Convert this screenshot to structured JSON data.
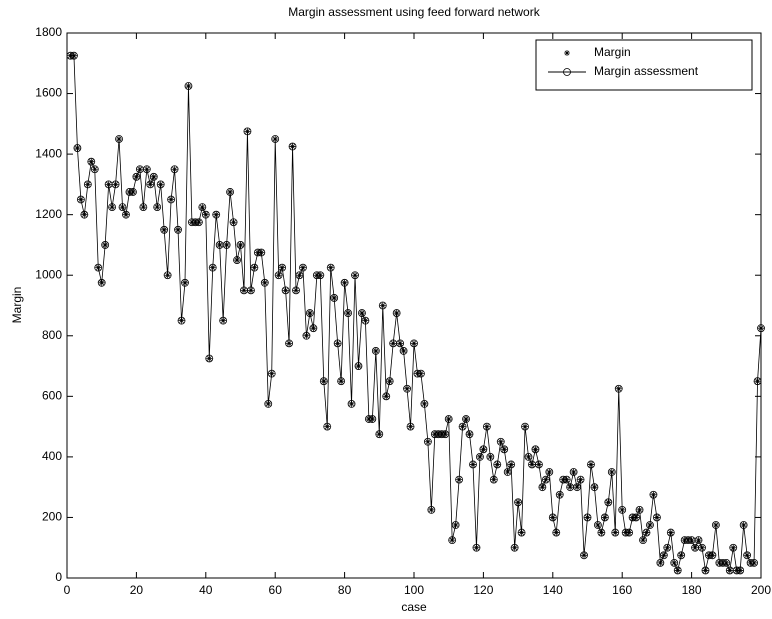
{
  "chart_data": {
    "type": "line",
    "title": "Margin assessment using feed forward network",
    "x_label": "case",
    "y_label": "Margin",
    "xlim": [
      0,
      200
    ],
    "ylim": [
      0,
      1800
    ],
    "xticks": [
      0,
      20,
      40,
      60,
      80,
      100,
      120,
      140,
      160,
      180,
      200
    ],
    "yticks": [
      0,
      200,
      400,
      600,
      800,
      1000,
      1200,
      1400,
      1600,
      1800
    ],
    "grid": false,
    "legend": "upper right",
    "x": [
      1,
      2,
      3,
      4,
      5,
      6,
      7,
      8,
      9,
      10,
      11,
      12,
      13,
      14,
      15,
      16,
      17,
      18,
      19,
      20,
      21,
      22,
      23,
      24,
      25,
      26,
      27,
      28,
      29,
      30,
      31,
      32,
      33,
      34,
      35,
      36,
      37,
      38,
      39,
      40,
      41,
      42,
      43,
      44,
      45,
      46,
      47,
      48,
      49,
      50,
      51,
      52,
      53,
      54,
      55,
      56,
      57,
      58,
      59,
      60,
      61,
      62,
      63,
      64,
      65,
      66,
      67,
      68,
      69,
      70,
      71,
      72,
      73,
      74,
      75,
      76,
      77,
      78,
      79,
      80,
      81,
      82,
      83,
      84,
      85,
      86,
      87,
      88,
      89,
      90,
      91,
      92,
      93,
      94,
      95,
      96,
      97,
      98,
      99,
      100,
      101,
      102,
      103,
      104,
      105,
      106,
      107,
      108,
      109,
      110,
      111,
      112,
      113,
      114,
      115,
      116,
      117,
      118,
      119,
      120,
      121,
      122,
      123,
      124,
      125,
      126,
      127,
      128,
      129,
      130,
      131,
      132,
      133,
      134,
      135,
      136,
      137,
      138,
      139,
      140,
      141,
      142,
      143,
      144,
      145,
      146,
      147,
      148,
      149,
      150,
      151,
      152,
      153,
      154,
      155,
      156,
      157,
      158,
      159,
      160,
      161,
      162,
      163,
      164,
      165,
      166,
      167,
      168,
      169,
      170,
      171,
      172,
      173,
      174,
      175,
      176,
      177,
      178,
      179,
      180,
      181,
      182,
      183,
      184,
      185,
      186,
      187,
      188,
      189,
      190,
      191,
      192,
      193,
      194,
      195,
      196,
      197,
      198,
      199,
      200
    ],
    "series": [
      {
        "name": "Margin",
        "color": "#000000",
        "marker": "asterisk",
        "values": [
          1725,
          1725,
          1420,
          1250,
          1200,
          1300,
          1375,
          1350,
          1025,
          975,
          1100,
          1300,
          1225,
          1300,
          1450,
          1225,
          1200,
          1275,
          1275,
          1325,
          1350,
          1225,
          1350,
          1300,
          1325,
          1225,
          1300,
          1150,
          1000,
          1250,
          1350,
          1150,
          850,
          975,
          1625,
          1175,
          1175,
          1175,
          1225,
          1200,
          725,
          1025,
          1200,
          1100,
          850,
          1100,
          1275,
          1175,
          1050,
          1100,
          950,
          1475,
          950,
          1025,
          1075,
          1075,
          975,
          575,
          675,
          1450,
          1000,
          1025,
          950,
          775,
          1425,
          950,
          1000,
          1025,
          800,
          875,
          825,
          1000,
          1000,
          650,
          500,
          1025,
          925,
          775,
          650,
          975,
          875,
          575,
          1000,
          700,
          875,
          850,
          525,
          525,
          750,
          475,
          900,
          600,
          650,
          775,
          875,
          775,
          750,
          625,
          500,
          775,
          675,
          675,
          575,
          450,
          225,
          475,
          475,
          475,
          475,
          525,
          125,
          175,
          325,
          500,
          525,
          475,
          375,
          100,
          400,
          425,
          500,
          400,
          325,
          375,
          450,
          425,
          350,
          375,
          100,
          250,
          150,
          500,
          400,
          375,
          425,
          375,
          300,
          325,
          350,
          200,
          150,
          275,
          325,
          325,
          300,
          350,
          300,
          325,
          75,
          200,
          375,
          300,
          175,
          150,
          200,
          250,
          350,
          150,
          625,
          225,
          150,
          150,
          200,
          200,
          225,
          125,
          150,
          175,
          275,
          200,
          50,
          75,
          100,
          150,
          50,
          25,
          75,
          125,
          125,
          125,
          100,
          125,
          100,
          25,
          75,
          75,
          175,
          50,
          50,
          50,
          25,
          100,
          25,
          25,
          175,
          75,
          50,
          50,
          650,
          825
        ]
      },
      {
        "name": "Margin assessment",
        "color": "#000000",
        "marker": "circle",
        "values": [
          1725,
          1725,
          1420,
          1250,
          1200,
          1300,
          1375,
          1350,
          1025,
          975,
          1100,
          1300,
          1225,
          1300,
          1450,
          1225,
          1200,
          1275,
          1275,
          1325,
          1350,
          1225,
          1350,
          1300,
          1325,
          1225,
          1300,
          1150,
          1000,
          1250,
          1350,
          1150,
          850,
          975,
          1625,
          1175,
          1175,
          1175,
          1225,
          1200,
          725,
          1025,
          1200,
          1100,
          850,
          1100,
          1275,
          1175,
          1050,
          1100,
          950,
          1475,
          950,
          1025,
          1075,
          1075,
          975,
          575,
          675,
          1450,
          1000,
          1025,
          950,
          775,
          1425,
          950,
          1000,
          1025,
          800,
          875,
          825,
          1000,
          1000,
          650,
          500,
          1025,
          925,
          775,
          650,
          975,
          875,
          575,
          1000,
          700,
          875,
          850,
          525,
          525,
          750,
          475,
          900,
          600,
          650,
          775,
          875,
          775,
          750,
          625,
          500,
          775,
          675,
          675,
          575,
          450,
          225,
          475,
          475,
          475,
          475,
          525,
          125,
          175,
          325,
          500,
          525,
          475,
          375,
          100,
          400,
          425,
          500,
          400,
          325,
          375,
          450,
          425,
          350,
          375,
          100,
          250,
          150,
          500,
          400,
          375,
          425,
          375,
          300,
          325,
          350,
          200,
          150,
          275,
          325,
          325,
          300,
          350,
          300,
          325,
          75,
          200,
          375,
          300,
          175,
          150,
          200,
          250,
          350,
          150,
          625,
          225,
          150,
          150,
          200,
          200,
          225,
          125,
          150,
          175,
          275,
          200,
          50,
          75,
          100,
          150,
          50,
          25,
          75,
          125,
          125,
          125,
          100,
          125,
          100,
          25,
          75,
          75,
          175,
          50,
          50,
          50,
          25,
          100,
          25,
          25,
          175,
          75,
          50,
          50,
          650,
          825
        ]
      }
    ]
  }
}
